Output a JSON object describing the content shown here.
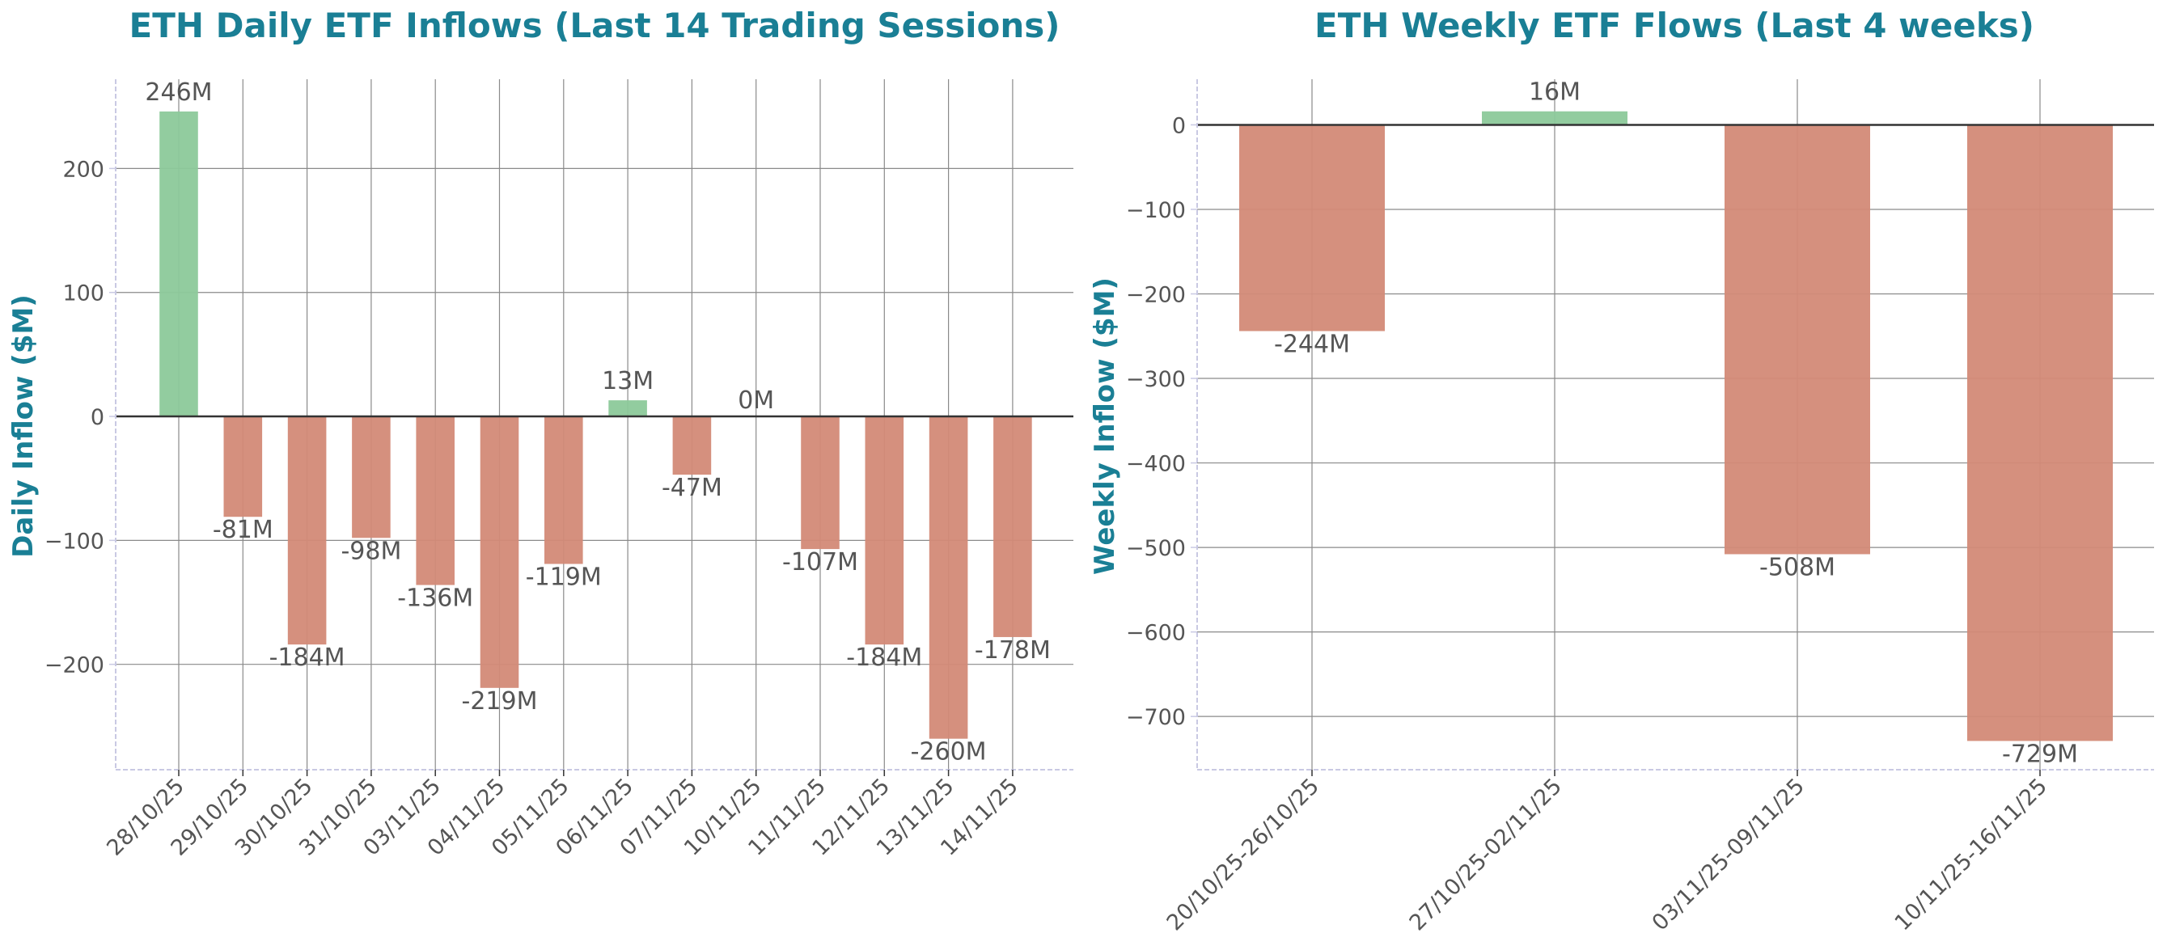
{
  "colors": {
    "title": "#1a7f95",
    "positive": "#8cc99a",
    "negative": "#d38a77",
    "grid": "#8a8a8a",
    "zero_line": "#333333",
    "axis_spine": "#c9c9e3",
    "text": "#555555"
  },
  "chart_data": [
    {
      "type": "bar",
      "title": "ETH Daily ETF Inflows (Last 14 Trading Sessions)",
      "xlabel": "",
      "ylabel": "Daily Inflow ($M)",
      "ylim": [
        -285,
        272
      ],
      "yticks": [
        -200,
        -100,
        0,
        100,
        200
      ],
      "ytick_labels": [
        "−200",
        "−100",
        "0",
        "100",
        "200"
      ],
      "grid": true,
      "categories": [
        "28/10/25",
        "29/10/25",
        "30/10/25",
        "31/10/25",
        "03/11/25",
        "04/11/25",
        "05/11/25",
        "06/11/25",
        "07/11/25",
        "10/11/25",
        "11/11/25",
        "12/11/25",
        "13/11/25",
        "14/11/25"
      ],
      "values": [
        246,
        -81,
        -184,
        -98,
        -136,
        -219,
        -119,
        13,
        -47,
        0,
        -107,
        -184,
        -260,
        -178
      ],
      "data_labels": [
        "246M",
        "-81M",
        "-184M",
        "-98M",
        "-136M",
        "-219M",
        "-119M",
        "13M",
        "-47M",
        "0M",
        "-107M",
        "-184M",
        "-260M",
        "-178M"
      ]
    },
    {
      "type": "bar",
      "title": "ETH Weekly ETF Flows (Last 4 weeks)",
      "xlabel": "",
      "ylabel": "Weekly Inflow ($M)",
      "ylim": [
        -763,
        54
      ],
      "yticks": [
        -700,
        -600,
        -500,
        -400,
        -300,
        -200,
        -100,
        0
      ],
      "ytick_labels": [
        "−700",
        "−600",
        "−500",
        "−400",
        "−300",
        "−200",
        "−100",
        "0"
      ],
      "grid": true,
      "categories": [
        "20/10/25-26/10/25",
        "27/10/25-02/11/25",
        "03/11/25-09/11/25",
        "10/11/25-16/11/25"
      ],
      "values": [
        -244,
        16,
        -508,
        -729
      ],
      "data_labels": [
        "-244M",
        "16M",
        "-508M",
        "-729M"
      ]
    }
  ]
}
